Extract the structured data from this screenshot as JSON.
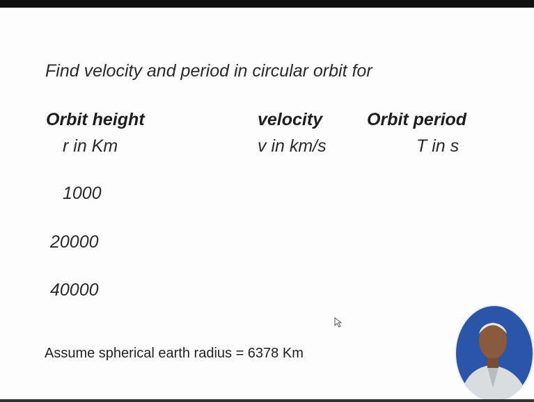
{
  "title": "Find velocity and period in circular orbit for",
  "table": {
    "headers": [
      "Orbit height",
      "velocity",
      "Orbit period"
    ],
    "units": [
      "r in Km",
      "v in km/s",
      "T in s"
    ],
    "heights": [
      "1000",
      "20000",
      "40000"
    ]
  },
  "note": "Assume spherical earth radius = 6378 Km"
}
